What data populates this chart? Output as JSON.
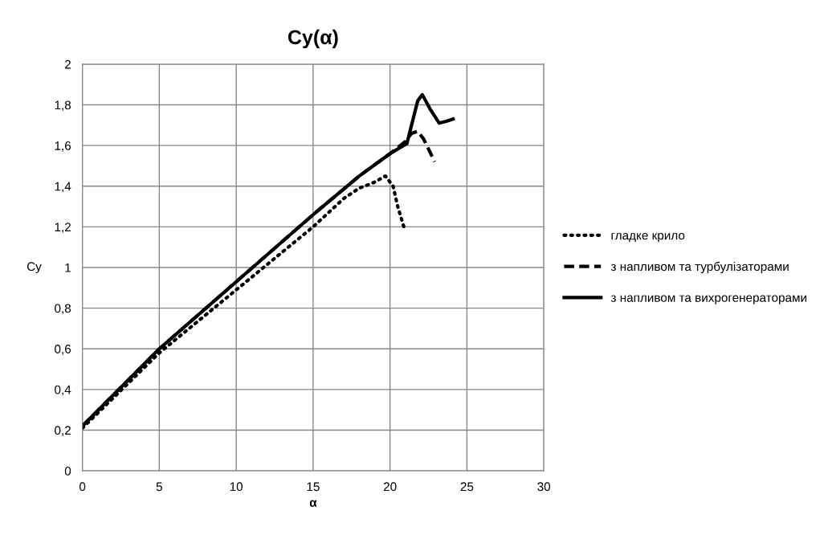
{
  "chart_data": {
    "type": "line",
    "title": "Cy(α)",
    "xlabel": "α",
    "ylabel": "Cy",
    "xlim": [
      0,
      30
    ],
    "xticks": [
      0,
      5,
      10,
      15,
      20,
      25,
      30
    ],
    "ylim": [
      0,
      2
    ],
    "yticks": [
      0,
      {
        "value": 0.2,
        "label": "0,2"
      },
      {
        "value": 0.4,
        "label": "0,4"
      },
      {
        "value": 0.6,
        "label": "0,6"
      },
      {
        "value": 0.8,
        "label": "0,8"
      },
      1,
      {
        "value": 1.2,
        "label": "1,2"
      },
      {
        "value": 1.4,
        "label": "1,4"
      },
      {
        "value": 1.6,
        "label": "1,6"
      },
      {
        "value": 1.8,
        "label": "1,8"
      },
      2
    ],
    "grid": true,
    "legend": "right",
    "series": [
      {
        "name": "гладке крило",
        "color": "#000000",
        "line_style": "dotted",
        "x": [
          0,
          5,
          10,
          15,
          17,
          18,
          19,
          19.7,
          20.2,
          20.5,
          20.9
        ],
        "values": [
          0.21,
          0.58,
          0.89,
          1.2,
          1.34,
          1.39,
          1.42,
          1.45,
          1.4,
          1.3,
          1.2
        ]
      },
      {
        "name": "з напливом та турбулізаторами",
        "color": "#000000",
        "line_style": "dashed",
        "x": [
          0,
          5,
          10,
          15,
          18,
          20,
          21,
          21.4,
          21.8,
          22.2,
          22.9
        ],
        "values": [
          0.22,
          0.6,
          0.93,
          1.26,
          1.45,
          1.56,
          1.62,
          1.66,
          1.67,
          1.63,
          1.52
        ]
      },
      {
        "name": "з напливом та вихрогенераторами",
        "color": "#000000",
        "line_style": "solid",
        "x": [
          0,
          5,
          10,
          15,
          18,
          20,
          21.1,
          21.5,
          21.8,
          22.1,
          22.6,
          23.2,
          23.7,
          24.1
        ],
        "values": [
          0.22,
          0.6,
          0.93,
          1.26,
          1.45,
          1.56,
          1.61,
          1.73,
          1.82,
          1.85,
          1.78,
          1.71,
          1.72,
          1.73
        ]
      }
    ]
  }
}
